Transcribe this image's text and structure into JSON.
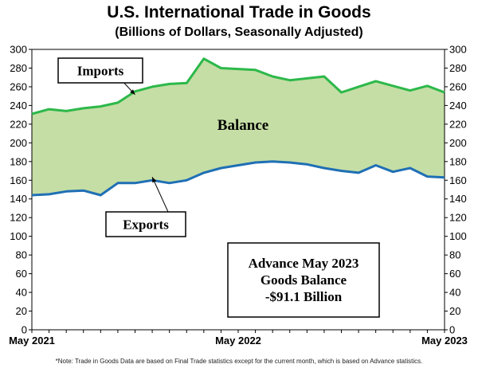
{
  "chart_data": {
    "type": "area",
    "title": "U.S. International Trade in Goods",
    "subtitle": "(Billions of Dollars, Seasonally Adjusted)",
    "x": [
      "May 2021",
      "Jun 2021",
      "Jul 2021",
      "Aug 2021",
      "Sep 2021",
      "Oct 2021",
      "Nov 2021",
      "Dec 2021",
      "Jan 2022",
      "Feb 2022",
      "Mar 2022",
      "Apr 2022",
      "May 2022",
      "Jun 2022",
      "Jul 2022",
      "Aug 2022",
      "Sep 2022",
      "Oct 2022",
      "Nov 2022",
      "Dec 2022",
      "Jan 2023",
      "Feb 2023",
      "Mar 2023",
      "Apr 2023",
      "May 2023"
    ],
    "x_tick_labels": [
      "May 2021",
      "May 2022",
      "May 2023"
    ],
    "series": [
      {
        "name": "Imports",
        "color": "#2db84a",
        "values": [
          231,
          236,
          234,
          237,
          239,
          243,
          255,
          260,
          263,
          264,
          290,
          280,
          279,
          278,
          271,
          267,
          269,
          271,
          254,
          260,
          266,
          261,
          256,
          261,
          254
        ]
      },
      {
        "name": "Exports",
        "color": "#1f6fb5",
        "values": [
          144,
          145,
          148,
          149,
          144,
          157,
          157,
          160,
          157,
          160,
          168,
          173,
          176,
          179,
          180,
          179,
          177,
          173,
          170,
          168,
          176,
          169,
          173,
          164,
          163
        ]
      }
    ],
    "fill_between": {
      "label": "Balance",
      "color": "#c5dea5"
    },
    "ylim": [
      0,
      300
    ],
    "y_ticks": [
      0,
      20,
      40,
      60,
      80,
      100,
      120,
      140,
      160,
      180,
      200,
      220,
      240,
      260,
      280,
      300
    ],
    "grid": false,
    "legend": "inline labels",
    "annotation": {
      "lines": [
        "Advance May 2023",
        "Goods Balance",
        "-$91.1 Billion"
      ]
    },
    "note": "*Note: Trade in Goods Data are based on Final Trade statistics except for the current month, which is based on Advance statistics."
  }
}
